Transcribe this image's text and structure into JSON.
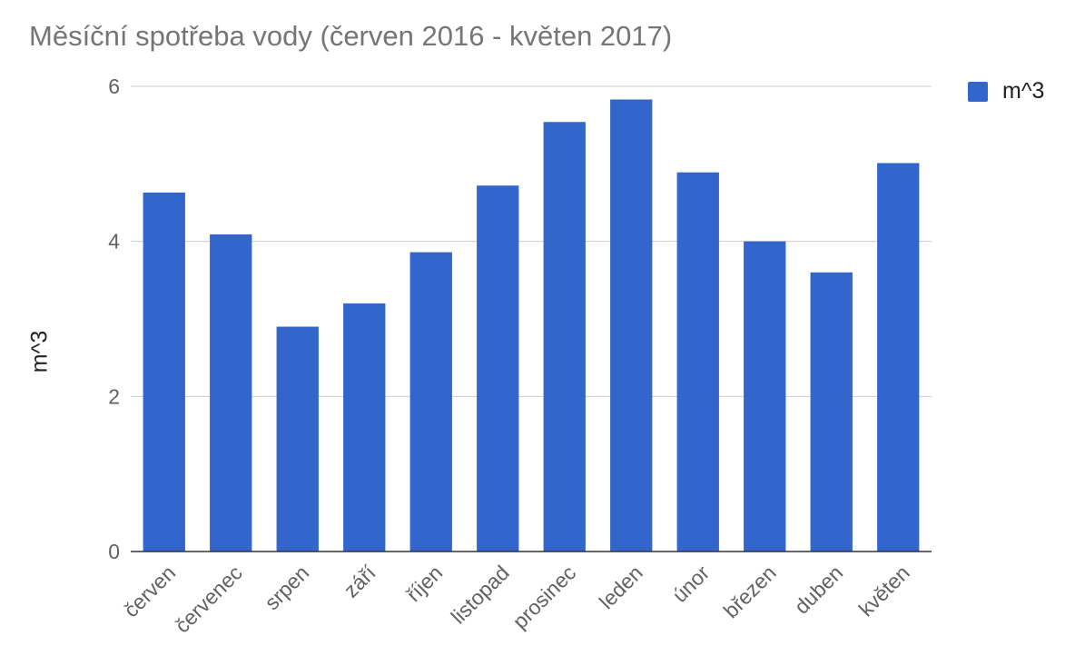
{
  "chart_data": {
    "type": "bar",
    "title": "Měsíční spotřeba vody (červen 2016 - květen 2017)",
    "xlabel": "",
    "ylabel": "m^3",
    "ylim": [
      0,
      6
    ],
    "yticks": [
      0,
      2,
      4,
      6
    ],
    "grid": true,
    "legend_position": "top-right",
    "categories": [
      "červen",
      "červenec",
      "srpen",
      "září",
      "říjen",
      "listopad",
      "prosinec",
      "leden",
      "únor",
      "březen",
      "duben",
      "květen"
    ],
    "series": [
      {
        "name": "m^3",
        "color": "#3366cc",
        "values": [
          4.63,
          4.09,
          2.9,
          3.2,
          3.86,
          4.72,
          5.54,
          5.83,
          4.89,
          4.0,
          3.6,
          5.01
        ]
      }
    ]
  }
}
